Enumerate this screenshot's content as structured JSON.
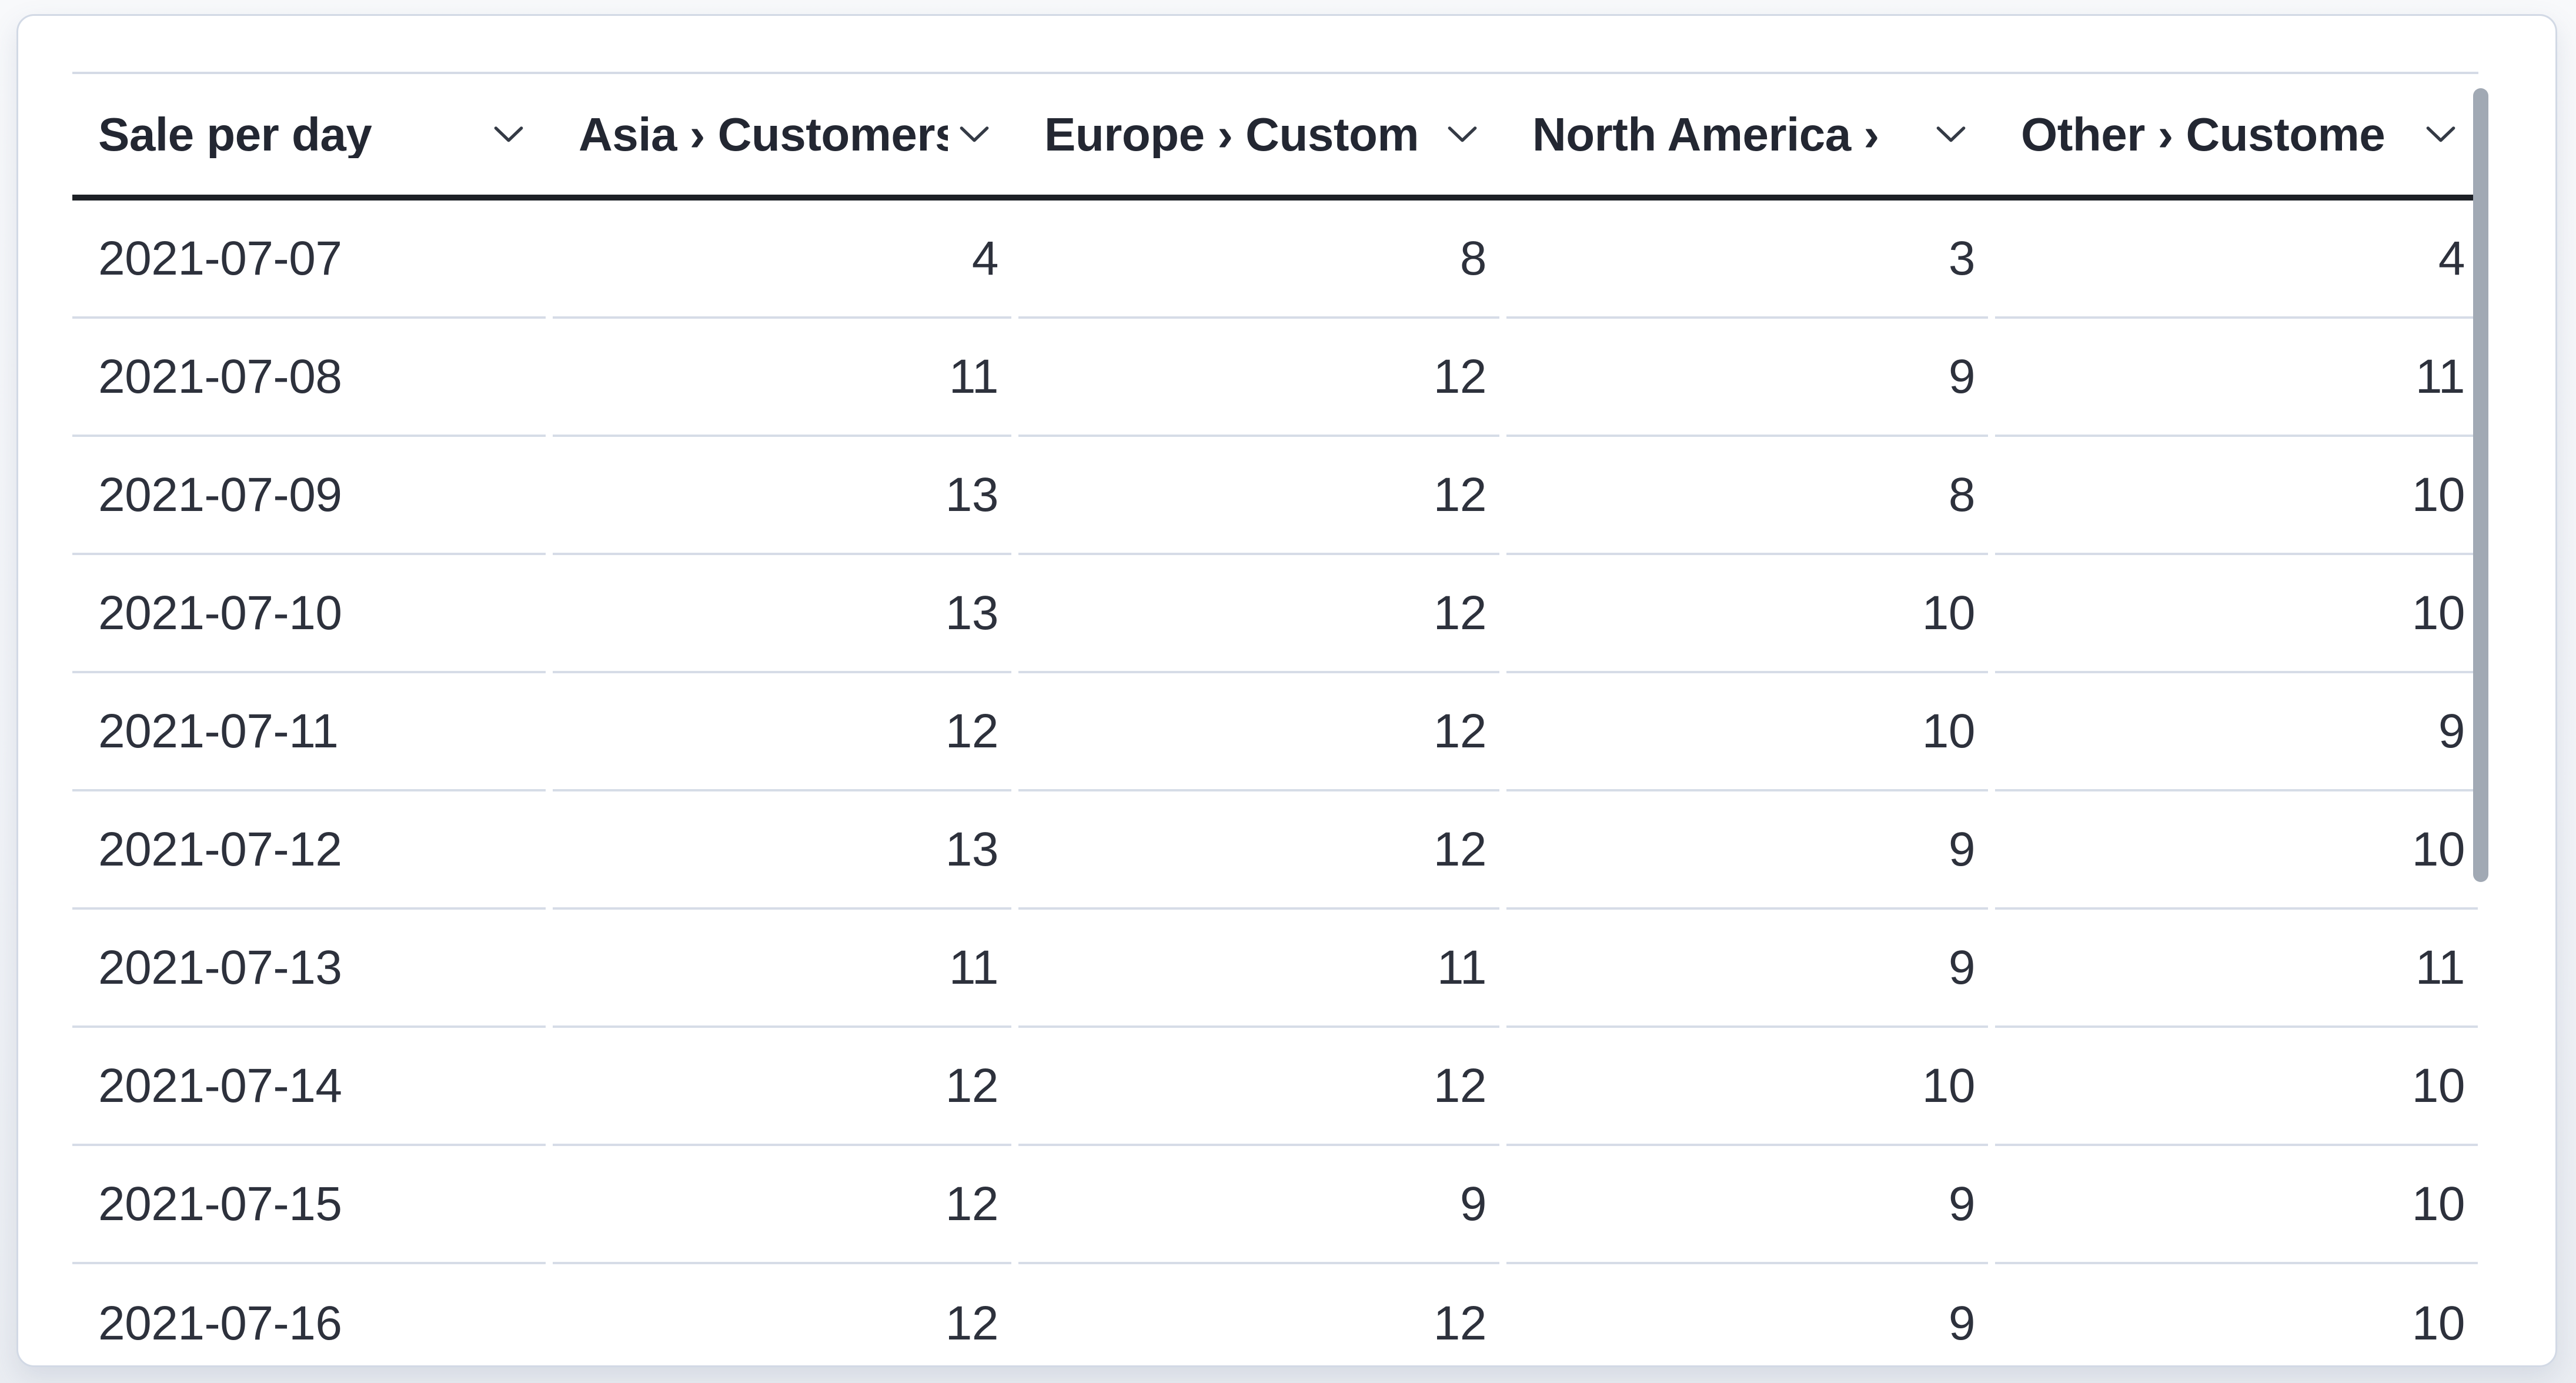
{
  "panel": {
    "type": "data-table-visualization"
  },
  "table": {
    "columns": [
      {
        "id": "sale-per-day",
        "label": "Sale per day",
        "align": "left",
        "sortable": true
      },
      {
        "id": "asia",
        "label": "Asia › Customers",
        "align": "right",
        "sortable": true
      },
      {
        "id": "europe",
        "label": "Europe › Custom",
        "align": "right",
        "sortable": true
      },
      {
        "id": "north-america",
        "label": "North America ›",
        "align": "right",
        "sortable": true
      },
      {
        "id": "other",
        "label": "Other › Custome",
        "align": "right",
        "sortable": true
      }
    ],
    "rows": [
      [
        "2021-07-07",
        "4",
        "8",
        "3",
        "4"
      ],
      [
        "2021-07-08",
        "11",
        "12",
        "9",
        "11"
      ],
      [
        "2021-07-09",
        "13",
        "12",
        "8",
        "10"
      ],
      [
        "2021-07-10",
        "13",
        "12",
        "10",
        "10"
      ],
      [
        "2021-07-11",
        "12",
        "12",
        "10",
        "9"
      ],
      [
        "2021-07-12",
        "13",
        "12",
        "9",
        "10"
      ],
      [
        "2021-07-13",
        "11",
        "11",
        "9",
        "11"
      ],
      [
        "2021-07-14",
        "12",
        "12",
        "10",
        "10"
      ],
      [
        "2021-07-15",
        "12",
        "9",
        "9",
        "10"
      ],
      [
        "2021-07-16",
        "12",
        "12",
        "9",
        "10"
      ]
    ]
  },
  "icons": {
    "sort_chevron": "chevron-down"
  },
  "scrollbar": {
    "visible": true
  },
  "colors": {
    "card_background": "#ffffff",
    "card_border": "#d2d9e5",
    "header_underline": "#1d2026",
    "row_divider": "#d6dce7",
    "header_text": "#232732",
    "cell_text": "#2d313c",
    "scrollbar_thumb": "#a1a9b4",
    "page_background": "#f2f4f8"
  }
}
